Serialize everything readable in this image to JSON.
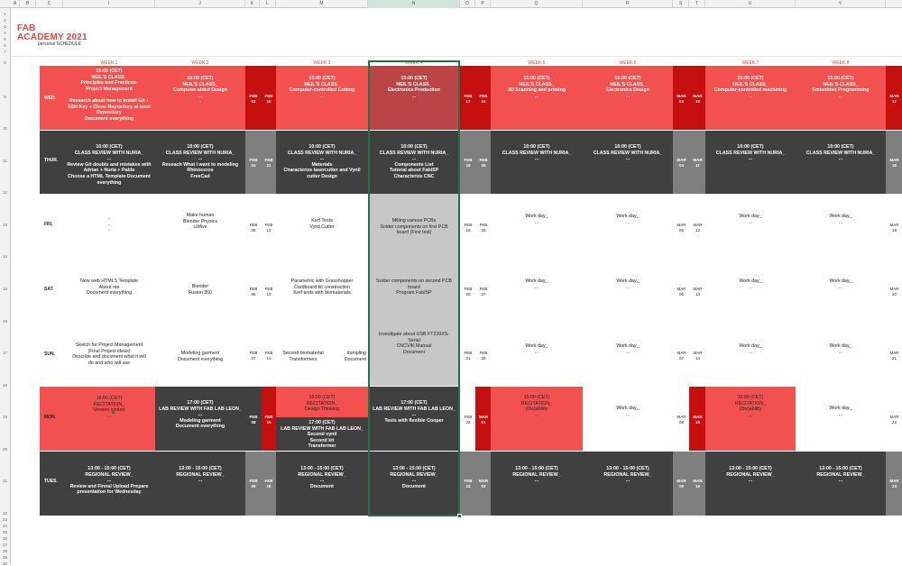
{
  "columns": [
    "A",
    "B",
    "C",
    "I",
    "J",
    "K",
    "L",
    "M",
    "N",
    "O",
    "P",
    "Q",
    "R",
    "S",
    "T",
    "U",
    "V"
  ],
  "rows": [
    "1",
    "2",
    "3",
    "4",
    "5",
    "6",
    "7",
    "8",
    "9",
    "10",
    "11",
    "12",
    "13",
    "14",
    "15",
    "16",
    "17",
    "18",
    "19",
    "20",
    "21",
    "22",
    "23",
    "24",
    "25",
    "26",
    "27",
    "28",
    "29",
    "30"
  ],
  "header": {
    "title1": "FAB",
    "title2": "ACADEMY 2021",
    "subtitle": "personal SCHEDULE"
  },
  "weeks": [
    "WEEK 1",
    "WEEK 2",
    "WEEK 3",
    "WEEK 4",
    "WEEK 5",
    "WEEK 6",
    "WEEK 7",
    "WEEK 8"
  ],
  "days": {
    "wed": "WED.",
    "thur": "THUR.",
    "fri": "FRI.",
    "sat": "SAT.",
    "sun": "SUN.",
    "mon": "MON.",
    "tues": "TUES."
  },
  "wed": {
    "w1": "15:00 (CET)\nNEIL'S CLASS_\nPrinciples and Practices-\nProject Management\n...\nResearch about how to install Git +\nSSH Key + Clone Repository at local\nRepository\nDocument everything",
    "w2": "15:00 (CET)\nNEIL'S CLASS_\nComputer-aided Design\n...\n-",
    "w3": "15:00 (CET)\nNEIL'S CLASS_\nComputer-controlled Cutting\n...",
    "w4": "15:00 (CET)\nNEIL'S CLASS_\nElectronics Production\n...",
    "w5": "15:00 (CET)\nNEIL'S CLASS_\n3D Scanning and printing\n...",
    "w6": "15:00 (CET)\nNEIL'S CLASS_\nElectronics Design\n...",
    "w7": "15:00 (CET)\nNEIL'S CLASS_\nComputer-controlled machining\n...",
    "w8": "15:00 (CET)\nNEIL'S CLASS_\nEmbedded Programming\n...",
    "d1": "FEB\n03",
    "d2": "FEB\n10",
    "d3": "FEB\n17",
    "d4": "FEB\n24",
    "d5": "MAR\n03",
    "d6": "MAR\n10",
    "d7": "MAR\n17"
  },
  "thur": {
    "w1": "10:00 (CET)\nCLASS REVIEW WITH NURIA_\n...\nReview Git doubts and mistakes with\nAdrian + Nuria + Pablo\nChoose a HTML Template  Document\neverything",
    "w2": "10:00 (CET)\nCLASS REVIEW WITH NURIA_\n...\nReseach What I want to modeling\nRhinoceros\nFreeCad",
    "w3": "10:00 (CET)\nCLASS REVIEW WITH NURIA_\n...\nMaterials\nCharacterize lasercutter and Vynil\ncutter Design",
    "w4": "10:00 (CET)\nCLASS REVIEW WITH NURIA_\n...\nComponents List\nTutorial about FabISP\nCharacterize CNC",
    "w5": "10:00 (CET)\nCLASS REVIEW WITH NURIA_\n...",
    "w6": "10:00 (CET)\nCLASS REVIEW WITH NURIA_\n...",
    "w7": "10:00 (CET)\nCLASS REVIEW WITH NURIA_\n...",
    "w8": "10:00 (CET)\nCLASS REVIEW WITH NURIA_\n...",
    "d1": "FEB\n04",
    "d2": "FEB\n11",
    "d3": "FEB\n18",
    "d4": "FEB\n25",
    "d5": "MAR\n04",
    "d6": "MAR\n11",
    "d7": "MAR\n18"
  },
  "fri": {
    "w1": "-\n-\n-",
    "w2": "Make human\nBlender Physics\nLibfive",
    "w3": "Kerf Tests\nVynil Cutter",
    "w4": "Milling various PCBs\nSolder components on first PCB\nboard (First test)",
    "w5": "Work day_\n...",
    "w6": "Work day_\n...",
    "w7": "Work day_\n...",
    "w8": "Work day_\n...",
    "d1": "FEB\n05",
    "d2": "FEB\n12",
    "d3": "FEB\n19",
    "d4": "FEB\n26",
    "d5": "MAR\n05",
    "d6": "MAR\n12",
    "d7": "MAR\n19"
  },
  "sat": {
    "w1": "New web HTMLS Template\nAbout me\nDocument everything",
    "w2": "Blender\nFusion 360",
    "w3": "Parametric with Grasshopper\nCardboard kit construction\nKerf tests with biomaterials",
    "w4": "Solder components on second PCB\nboard\nProgram FabISP",
    "w5": "Work day_\n...",
    "w6": "Work day_\n...",
    "w7": "Work day_\n...",
    "w8": "Work day_\n...",
    "d1": "FEB\n06",
    "d2": "FEB\n13",
    "d3": "FEB\n20",
    "d4": "FEB\n27",
    "d5": "MAR\n06",
    "d6": "MAR\n13",
    "d7": "MAR\n20"
  },
  "sun": {
    "w1": "Sketch for Project Management\n(Final Project ideas)\nDescribe and document what it will\ndo and who will use",
    "w2": "Modeling garment\nDocument everything",
    "w3a": "Second biomaterial\nTransformers",
    "w3b": "dumpling\nDocument",
    "w4": "Investigate about USB FT230XS-\nSerial\nCNCVIK Manual\nDocument",
    "w5": "Work day_\n...",
    "w6": "Work day_\n...",
    "w7": "Work day_\n...",
    "w8": "Work day_\n...",
    "d1": "FEB\n07",
    "d2": "FEB\n14",
    "d3": "FEB\n21",
    "d4": "FEB\n28",
    "d5": "MAR\n07",
    "d6": "MAR\n14",
    "d7": "MAR\n21"
  },
  "mon": {
    "w1": "15:00 (CET)\nRECITATION_\nVersion control\n...",
    "w2": "17:00 (CET)\nLAB REVIEW WITH FAB LAB LEON_\n...\nModeling garment\nDocument everything",
    "w3a": "15:00 (CET)\nRECITATION_\nDesign Thinking\n...",
    "w3b": "17:00 (CET)\nLAB REVIEW WITH FAB LAB LEON_\nSecond vynil\nSecond kit\nTransformer",
    "w4": "17:00 (CET)\nLAB REVIEW WITH FAB LAB LEON_\n...\nTests with flexible Cooper",
    "w5": "15:00 (CET)\nRECITATION_\n(Dis)ability\n...",
    "w6": "Work day_\n...",
    "w7": "15:00 (CET)\nRECITATION_\n(Dis)ability\n...",
    "w8": "Work day_\n...",
    "d1": "FEB\n08",
    "d2": "FEB\n15",
    "d3": "FEB\n22",
    "d4": "MAR\n01",
    "d5": "MAR\n08",
    "d6": "MAR\n15",
    "d7": "MAR\n22"
  },
  "tues": {
    "w1": "13:00 - 15:00 (CET)\nREGIONAL REVIEW_\n...\nReview and Finnal Upload  Prepare\npresentation for Wednesday",
    "w2": "13:00 - 15:00 (CET)\nREGIONAL REVIEW_\n...",
    "w3": "13:00 - 15:00 (CET)\nREGIONAL REVIEW_\n...\nDocument",
    "w4": "13:00 - 15:00 (CET)\nREGIONAL REVIEW_\n...\nDocument",
    "w5": "13:00 - 15:00 (CET)\nREGIONAL REVIEW_\n...",
    "w6": "13:00 - 15:00 (CET)\nREGIONAL REVIEW_\n...",
    "w7": "13:00 - 15:00 (CET)\nREGIONAL REVIEW_\n...",
    "w8": "13:00 - 15:00 (CET)\nREGIONAL REVIEW_\n...",
    "d1": "FEB\n09",
    "d2": "FEB\n16",
    "d3": "FEB\n23",
    "d4": "MAR\n02",
    "d5": "MAR\n09",
    "d6": "MAR\n16",
    "d7": "MAR\n23"
  },
  "colors": {
    "red": "#f25150",
    "dark_red": "#c5100f",
    "dark": "#404040",
    "gray": "#7f7f7f",
    "light_gray": "#c7c7c7",
    "selection": "#217346"
  }
}
